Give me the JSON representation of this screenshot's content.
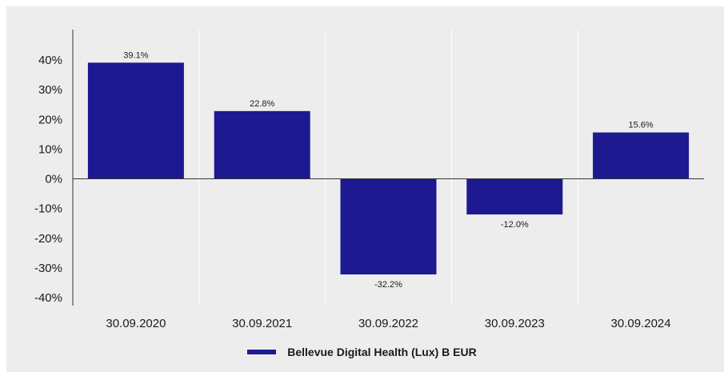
{
  "chart_data": {
    "type": "bar",
    "title": "",
    "xlabel": "",
    "ylabel": "",
    "categories": [
      "30.09.2020",
      "30.09.2021",
      "30.09.2022",
      "30.09.2023",
      "30.09.2024"
    ],
    "series": [
      {
        "name": "Bellevue Digital Health (Lux) B EUR",
        "values": [
          39.1,
          22.8,
          -32.2,
          -12.0,
          15.6
        ],
        "labels": [
          "39.1%",
          "22.8%",
          "-32.2%",
          "-12.0%",
          "15.6%"
        ],
        "color": "#1c1991"
      }
    ],
    "ylim": [
      -40,
      40
    ],
    "yticks": [
      40,
      30,
      20,
      10,
      0,
      -10,
      -20,
      -30,
      -40
    ],
    "ytick_labels": [
      "40%",
      "30%",
      "20%",
      "10%",
      "0%",
      "-10%",
      "-20%",
      "-30%",
      "-40%"
    ],
    "grid": "vertical-separators",
    "legend_position": "bottom-center",
    "background": "#ededed",
    "separator_color": "#ffffff",
    "axis_color": "#333333"
  },
  "legend": {
    "label": "Bellevue Digital Health (Lux) B EUR"
  }
}
